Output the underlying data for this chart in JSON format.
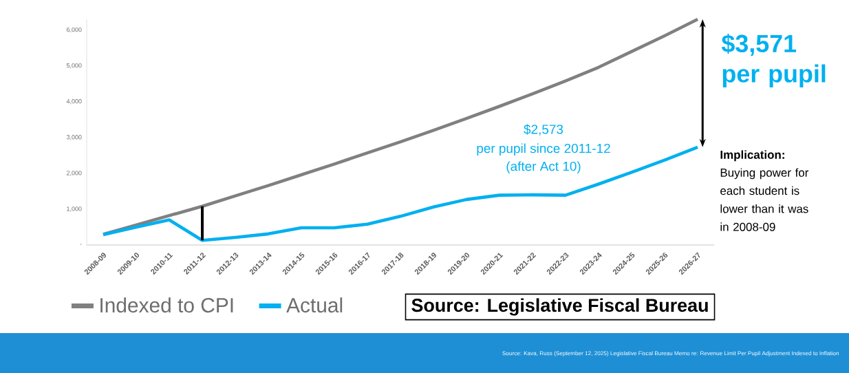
{
  "chart_data": {
    "type": "line",
    "categories": [
      "2008-09",
      "2009-10",
      "2010-11",
      "2011-12",
      "2012-13",
      "2013-14",
      "2014-15",
      "2015-16",
      "2016-17",
      "2017-18",
      "2018-19",
      "2019-20",
      "2020-21",
      "2021-22",
      "2022-23",
      "2023-24",
      "2024-25",
      "2025-26",
      "2026-27"
    ],
    "series": [
      {
        "name": "Indexed to CPI",
        "color": "#808080",
        "values": [
          300,
          560,
          820,
          1080,
          1370,
          1660,
          1960,
          2260,
          2570,
          2880,
          3200,
          3530,
          3870,
          4220,
          4580,
          4960,
          5400,
          5840,
          6300
        ]
      },
      {
        "name": "Actual",
        "color": "#00b0f0",
        "values": [
          290,
          500,
          700,
          130,
          210,
          310,
          480,
          480,
          580,
          800,
          1060,
          1270,
          1390,
          1400,
          1390,
          1700,
          2030,
          2370,
          2730
        ]
      }
    ],
    "yticks": [
      {
        "value": 0,
        "label": "-"
      },
      {
        "value": 1000,
        "label": "1,000"
      },
      {
        "value": 2000,
        "label": "2,000"
      },
      {
        "value": 3000,
        "label": "3,000"
      },
      {
        "value": 4000,
        "label": "4,000"
      },
      {
        "value": 5000,
        "label": "5,000"
      },
      {
        "value": 6000,
        "label": "6,000"
      }
    ],
    "ylim": [
      0,
      6300
    ],
    "legend": "bottom",
    "annotations": [
      "$2,573",
      "per pupil since 2011-12",
      "(after Act 10)",
      "$3,571 per pupil",
      "Implication:",
      "Buying power for each student is lower than it was in 2008-09",
      "Source: Legislative Fiscal Bureau",
      "Source: Kava, Russ (September 12, 2025) Legislative Fiscal Bureau Memo re: Revenue Limit Per Pupil Adjustment Indexed to Inflation"
    ]
  }
}
